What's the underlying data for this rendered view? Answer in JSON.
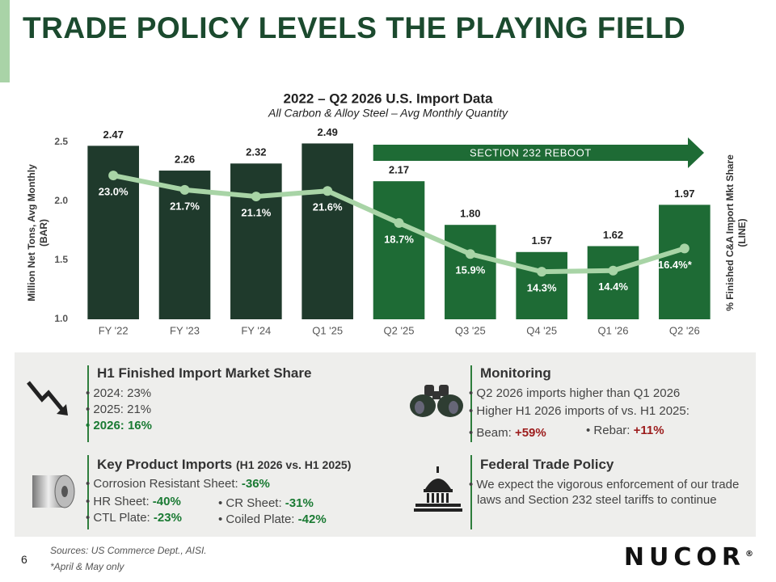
{
  "header": {
    "title": "TRADE POLICY LEVELS THE PLAYING FIELD"
  },
  "chart_data": {
    "type": "combo",
    "title": "2022 – Q2 2026 U.S. Import Data",
    "subtitle": "All Carbon & Alloy Steel – Avg Monthly Quantity",
    "ylabel": [
      "Million Net Tons, Avg Monthly",
      "(BAR)"
    ],
    "y2label": [
      "% Finished C&A Import Mkt Share",
      "(LINE)"
    ],
    "categories": [
      "FY '22",
      "FY '23",
      "FY '24",
      "Q1 '25",
      "Q2 '25",
      "Q3 '25",
      "Q4 '25",
      "Q1 '26",
      "Q2 '26"
    ],
    "series": [
      {
        "type": "bar",
        "colors": [
          "#1f3a2c",
          "#1f3a2c",
          "#1f3a2c",
          "#1f3a2c",
          "#1e6b35",
          "#1e6b35",
          "#1e6b35",
          "#1e6b35",
          "#1e6b35"
        ],
        "values": [
          2.47,
          2.26,
          2.32,
          2.49,
          2.17,
          1.8,
          1.57,
          1.62,
          1.97
        ],
        "value_labels": [
          "2.47",
          "2.26",
          "2.32",
          "2.49",
          "2.17",
          "1.80",
          "1.57",
          "1.62",
          "1.97"
        ]
      },
      {
        "type": "line",
        "axis": "y2",
        "color": "#a8d4a6",
        "values": [
          23.0,
          21.7,
          21.1,
          21.6,
          18.7,
          15.9,
          14.3,
          14.4,
          16.4
        ],
        "value_labels": [
          "23.0%",
          "21.7%",
          "21.1%",
          "21.6%",
          "18.7%",
          "15.9%",
          "14.3%",
          "14.4%",
          "16.4%*"
        ]
      }
    ],
    "ylim": [
      1.0,
      2.5
    ],
    "yticks": [
      {
        "value": 1,
        "label": "1.0"
      },
      1.5,
      {
        "value": 2,
        "label": "2.0"
      },
      2.5
    ],
    "y2lim": [
      10,
      26
    ],
    "annotations": [
      {
        "text": "SECTION 232 REBOOT",
        "color": "#1e6b35"
      }
    ]
  },
  "market_share": {
    "title": "H1 Finished Import Market Share",
    "items": [
      "2024: 23%",
      "2025: 21%",
      "2026: 16%"
    ]
  },
  "monitoring": {
    "title": "Monitoring",
    "items": [
      "Q2 2026 imports higher than Q1 2026",
      "Higher H1 2026 imports of vs. H1 2025:"
    ],
    "changes": [
      {
        "label": "Beam:",
        "value": "+59%"
      },
      {
        "label": "Rebar:",
        "value": "+11%"
      }
    ]
  },
  "key_products": {
    "title": "Key Product Imports",
    "qualifier": "(H1 2026 vs. H1 2025)",
    "items": [
      {
        "label": "Corrosion Resistant Sheet:",
        "value": "-36%"
      },
      {
        "label": "HR Sheet:",
        "value": "-40%"
      },
      {
        "label": "CR Sheet:",
        "value": "-31%"
      },
      {
        "label": "CTL Plate:",
        "value": "-23%"
      },
      {
        "label": "Coiled Plate:",
        "value": "-42%"
      }
    ]
  },
  "federal_policy": {
    "title": "Federal Trade Policy",
    "items": [
      "We expect the vigorous enforcement of our trade laws and Section 232 steel tariffs to continue"
    ]
  },
  "footer": {
    "sources": "Sources: US Commerce Dept., AISI.",
    "note": "*April & May only",
    "page": "6",
    "logo": "NUCOR",
    "logo_mark": "®"
  }
}
